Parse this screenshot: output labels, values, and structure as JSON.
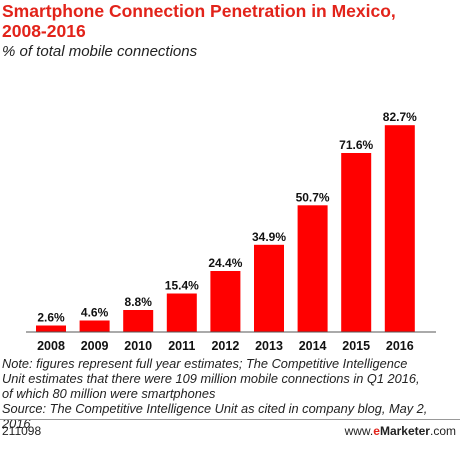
{
  "chart_data": {
    "type": "bar",
    "title": "Smartphone Connection Penetration in Mexico, 2008-2016",
    "title_lines": [
      "Smartphone Connection Penetration in Mexico,",
      "2008-2016"
    ],
    "subtitle": "% of total mobile connections",
    "categories": [
      "2008",
      "2009",
      "2010",
      "2011",
      "2012",
      "2013",
      "2014",
      "2015",
      "2016"
    ],
    "values": [
      2.6,
      4.6,
      8.8,
      15.4,
      24.4,
      34.9,
      50.7,
      71.6,
      82.7
    ],
    "value_labels": [
      "2.6%",
      "4.6%",
      "8.8%",
      "15.4%",
      "24.4%",
      "34.9%",
      "50.7%",
      "71.6%",
      "82.7%"
    ],
    "ylim": [
      0,
      100
    ],
    "grid": false,
    "bar_color": "#ff0000",
    "title_color": "#e2231a"
  },
  "notes": [
    "Note: figures represent full year estimates; The Competitive Intelligence",
    "Unit estimates that there were 109 million mobile connections in Q1 2016,",
    "of which 80 million were smartphones",
    "Source: The Competitive Intelligence Unit as cited in company blog, May 2,",
    "2016"
  ],
  "footer": {
    "chart_id": "211098",
    "brand_prefix": "www.",
    "brand_e": "e",
    "brand_name": "Marketer",
    "brand_suffix": ".com"
  }
}
